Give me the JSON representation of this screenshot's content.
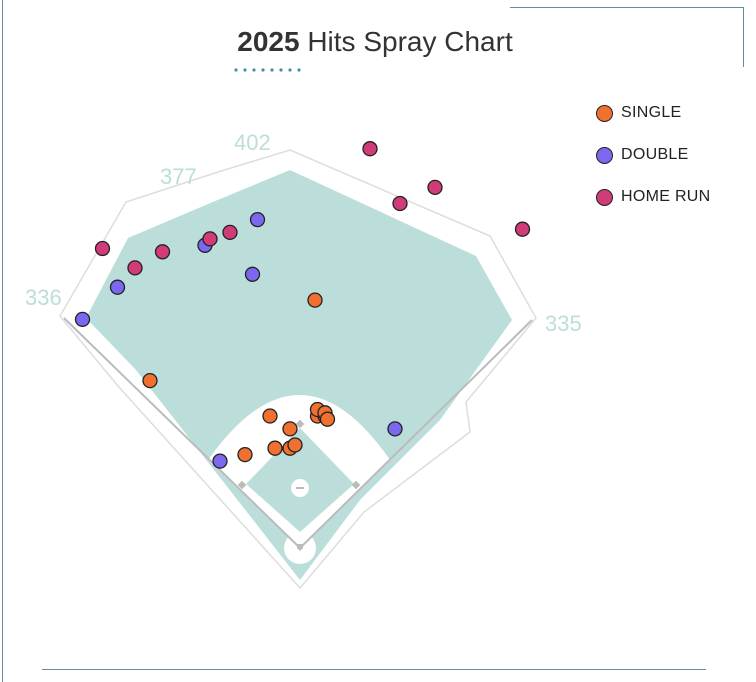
{
  "chart_data": {
    "type": "scatter",
    "title_year": "2025",
    "title_rest": "Hits Spray Chart",
    "field_labels": [
      {
        "text": "336",
        "anchor": "left-foul-pole"
      },
      {
        "text": "377",
        "anchor": "left-center"
      },
      {
        "text": "402",
        "anchor": "center"
      },
      {
        "text": "335",
        "anchor": "right-foul-pole"
      }
    ],
    "legend_placement": "top-right",
    "series": [
      {
        "name": "SINGLE",
        "color": "#f07030",
        "points": [
          [
            -0.6,
            0.52
          ],
          [
            0.06,
            0.77
          ],
          [
            -0.12,
            0.41
          ],
          [
            -0.22,
            0.29
          ],
          [
            -0.1,
            0.31
          ],
          [
            -0.04,
            0.31
          ],
          [
            0.07,
            0.41
          ],
          [
            0.1,
            0.41
          ],
          [
            0.07,
            0.43
          ],
          [
            0.1,
            0.42
          ],
          [
            -0.04,
            0.37
          ],
          [
            0.11,
            0.4
          ],
          [
            -0.02,
            0.32
          ]
        ]
      },
      {
        "name": "DOUBLE",
        "color": "#7b68ee",
        "points": [
          [
            -0.87,
            0.71
          ],
          [
            -0.73,
            0.81
          ],
          [
            -0.38,
            0.94
          ],
          [
            -0.17,
            1.02
          ],
          [
            -0.19,
            0.85
          ],
          [
            -0.32,
            0.27
          ],
          [
            0.38,
            0.37
          ]
        ]
      },
      {
        "name": "HOME RUN",
        "color": "#d03c78",
        "points": [
          [
            -0.79,
            0.93
          ],
          [
            -0.66,
            0.87
          ],
          [
            -0.55,
            0.92
          ],
          [
            -0.36,
            0.96
          ],
          [
            -0.28,
            0.98
          ],
          [
            0.28,
            1.24
          ],
          [
            0.4,
            1.07
          ],
          [
            0.54,
            1.12
          ],
          [
            0.89,
            0.99
          ]
        ]
      }
    ]
  }
}
